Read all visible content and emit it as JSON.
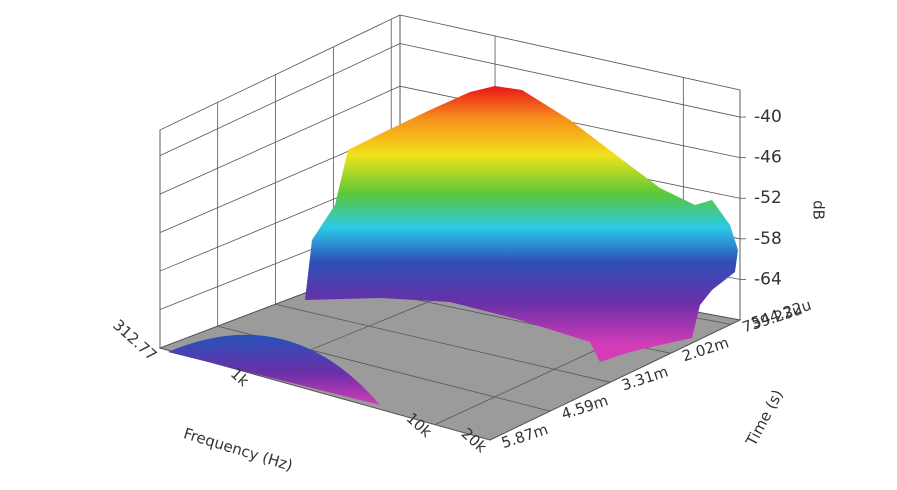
{
  "chart_data": {
    "type": "waterfall3d",
    "x_label": "Frequency (Hz)",
    "y_label": "Time (s)",
    "z_label": "dB",
    "xscale": "log",
    "xlim": [
      312.77,
      20000
    ],
    "xticks": [
      312.77,
      {
        "value": 1000,
        "label": "1k"
      },
      {
        "value": 10000,
        "label": "10k"
      },
      {
        "value": 20000,
        "label": "20k"
      }
    ],
    "ylim": [
      0.00054422,
      0.00587
    ],
    "yticks": [
      {
        "value": 0.00054422,
        "label": "544.22u"
      },
      {
        "value": 0.00073923,
        "label": "739.23u"
      },
      {
        "value": 0.00202,
        "label": "2.02m"
      },
      {
        "value": 0.00331,
        "label": "3.31m"
      },
      {
        "value": 0.00459,
        "label": "4.59m"
      },
      {
        "value": 0.00587,
        "label": "5.87m"
      }
    ],
    "zlim": [
      -70,
      -36
    ],
    "zticks": [
      -40,
      -46,
      -52,
      -58,
      -64
    ],
    "grid": true
  }
}
